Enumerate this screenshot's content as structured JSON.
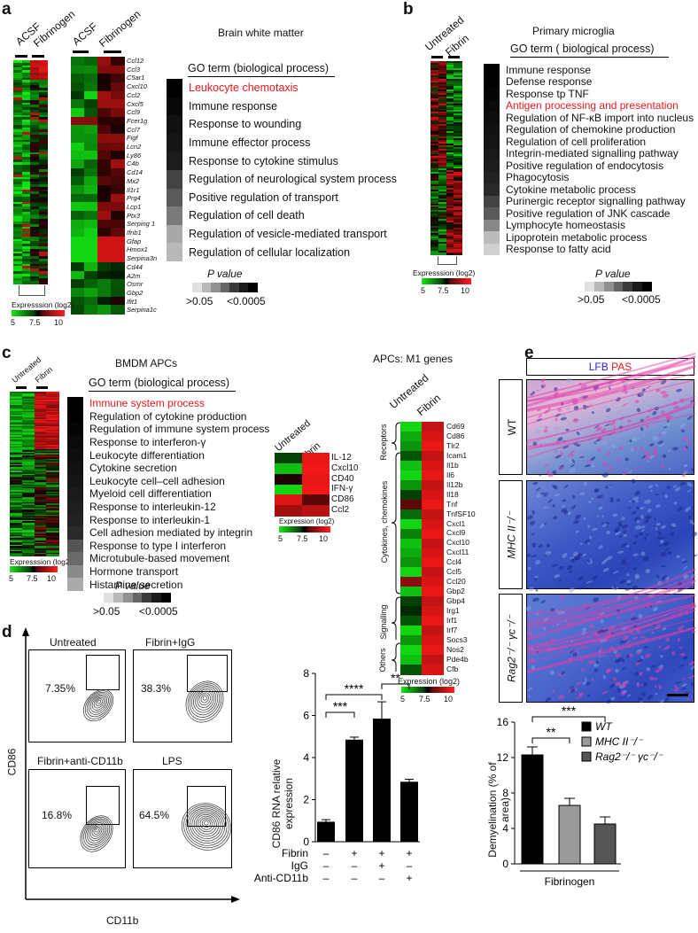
{
  "panels": {
    "a": "a",
    "b": "b",
    "c": "c",
    "d": "d",
    "e": "e"
  },
  "a": {
    "title": "Brain white matter",
    "col_acsf": "ACSF",
    "col_fib": "Fibrinogen",
    "go_header": "GO term (biological process)",
    "go_terms": [
      "Leukocyte chemotaxis",
      "Immune response",
      "Response to wounding",
      "Immune effector process",
      "Response to cytokine stimulus",
      "Regulation of neurological system process",
      "Positive regulation of transport",
      "Regulation of cell death",
      "Regulation of vesicle-mediated transport",
      "Regulation of cellular localization"
    ],
    "go_shades": [
      "#000",
      "#080808",
      "#111",
      "#161616",
      "#1c1c1c",
      "#444",
      "#5a5a5a",
      "#7a7a7a",
      "#a8a8a8",
      "#b8b8b8"
    ],
    "genes": [
      "Ccl12",
      "Ccl3",
      "C5ar1",
      "Cxcl10",
      "Ccl2",
      "Cxcl5",
      "Ccl9",
      "Fcer1g",
      "Ccl7",
      "Figf",
      "Lcn2",
      "Ly86",
      "C4b",
      "Cd14",
      "Mx2",
      "Il1r1",
      "Prg4",
      "Lcp1",
      "Ptx3",
      "Serping 1",
      "Ifnb1",
      "Gfap",
      "Hmox1",
      "Serpina3n",
      "Cd44",
      "A2m",
      "Osmr",
      "Gbp2",
      "Ifit1",
      "Serpina1c"
    ],
    "expr_label": "Expresssion (log2)",
    "ticks": [
      "5",
      "7.5",
      "10"
    ],
    "p_label": "P value",
    "p_low": ">0.05",
    "p_high": "<0.0005"
  },
  "b": {
    "title": "Primary microglia",
    "col_untreated": "Untreated",
    "col_fibrin": "Fibrin",
    "go_header": "GO term ( biological process)",
    "go_terms": [
      "Immune response",
      "Defense response",
      "Response tp TNF",
      "Antigen processing and presentation",
      "Regulation of NF-κB import into nucleus",
      "Regulation of chemokine production",
      "Regulation of cell proliferation",
      "Integrin-mediated signalling pathway",
      "Positive regulation of endocytosis",
      "Phagocytosis",
      "Cytokine metabolic process",
      "Purinergic receptor signalling pathway",
      "Positive regulation of JNK cascade",
      "Lymphocyte homeostasis",
      "Lipoprotein metabolic process",
      "Response to fatty acid"
    ],
    "go_shades": [
      "#000",
      "#000",
      "#050505",
      "#0a0a0a",
      "#0e0e0e",
      "#121212",
      "#151515",
      "#181818",
      "#1c1c1c",
      "#222",
      "#2a2a2a",
      "#444",
      "#5a5a5a",
      "#888",
      "#bbb",
      "#d0d0d0"
    ],
    "expr_label": "Expresssion (log2)",
    "ticks": [
      "5",
      "7.5",
      "10"
    ],
    "p_label": "P value",
    "p_low": ">0.05",
    "p_high": "<0.0005"
  },
  "c": {
    "title": "BMDM APCs",
    "col_untreated": "Untreated",
    "col_fibrin": "Fibrin",
    "go_header": "GO term (biological process)",
    "go_terms": [
      "Immune system process",
      "Regulation of cytokine production",
      "Regulation of immune system process",
      "Response to interferon-γ",
      "Leukocyte differentiation",
      "Cytokine secretion",
      "Leukocyte cell–cell adhesion",
      "Myeloid cell differentiation",
      "Response to interleukin-12",
      "Response to interleukin-1",
      "Cell adhesion mediated by integrin",
      "Response to type I interferon",
      "Microtubule-based movement",
      "Hormone transport",
      "Histamine secretion"
    ],
    "go_shades": [
      "#000",
      "#000",
      "#050505",
      "#0a0a0a",
      "#0e0e0e",
      "#121212",
      "#161616",
      "#1a1a1a",
      "#1e1e1e",
      "#222",
      "#2a2a2a",
      "#555",
      "#6a6a6a",
      "#8a8a8a",
      "#aaa"
    ],
    "small_genes": [
      "IL-12",
      "Cxcl10",
      "CD40",
      "IFN-γ",
      "CD86",
      "Ccl2"
    ],
    "m1_title": "APCs: M1 genes",
    "m1_genes": [
      "Cd69",
      "Cd86",
      "Tlr2",
      "Icam1",
      "Il1b",
      "Il6",
      "Il12b",
      "Il18",
      "Tnf",
      "TnfSF10",
      "Cxcl1",
      "Cxcl9",
      "Cxcl10",
      "Cxcl11",
      "Ccl4",
      "Ccl5",
      "Ccl20",
      "Gbp2",
      "Gbp4",
      "Irg1",
      "Irf1",
      "Irf7",
      "Socs3",
      "Nos2",
      "Pde4b",
      "Cfb"
    ],
    "groups": [
      "Receptors",
      "Cytokines, chemokines",
      "Signalling",
      "Others"
    ],
    "expr_label": "Expression (log2)",
    "expr_label_main": "Expresssion (log2)",
    "ticks": [
      "5",
      "7.5",
      "10"
    ],
    "p_label": "P value",
    "p_low": ">0.05",
    "p_high": "<0.0005"
  },
  "d": {
    "flow_titles": [
      "Untreated",
      "Fibrin+IgG",
      "Fibrin+anti-CD11b",
      "LPS"
    ],
    "percents": [
      "7.35%",
      "38.3%",
      "16.8%",
      "64.5%"
    ],
    "ylabel_flow": "CD86",
    "xlabel_flow": "CD11b",
    "chart_data": {
      "type": "bar",
      "ylabel": "CD86 RNA relative expression",
      "ylim": [
        0,
        8
      ],
      "yticks": [
        "0",
        "2",
        "4",
        "6",
        "8"
      ],
      "values": [
        0.95,
        4.85,
        5.85,
        2.85
      ],
      "errors": [
        0.1,
        0.12,
        0.8,
        0.12
      ],
      "row_labels": [
        "Fibrin",
        "IgG",
        "Anti-CD11b"
      ],
      "rows": [
        [
          "–",
          "+",
          "+",
          "+"
        ],
        [
          "–",
          "–",
          "+",
          "–"
        ],
        [
          "–",
          "–",
          "–",
          "+"
        ]
      ],
      "sig": [
        "***",
        "****",
        "**"
      ]
    }
  },
  "e": {
    "stain_lfb": "LFB",
    "stain_pas": "PAS",
    "genotypes": [
      "WT",
      "MHC II⁻/⁻",
      "Rag2⁻/⁻ γc⁻/⁻"
    ],
    "chart_data": {
      "type": "bar",
      "ylabel": "Demyelination (% of area)",
      "xlabel": "Fibrinogen",
      "ylim": [
        0,
        16
      ],
      "yticks": [
        "0",
        "4",
        "8",
        "12",
        "16"
      ],
      "values": [
        12.3,
        6.6,
        4.5
      ],
      "errors": [
        0.9,
        0.8,
        0.8
      ],
      "series": [
        {
          "name": "WT",
          "color": "#000000"
        },
        {
          "name": "MHC II⁻/⁻",
          "color": "#9a9a9a"
        },
        {
          "name": "Rag2⁻/⁻ γc⁻/⁻",
          "color": "#555555"
        }
      ],
      "sig": [
        "**",
        "***"
      ]
    }
  }
}
